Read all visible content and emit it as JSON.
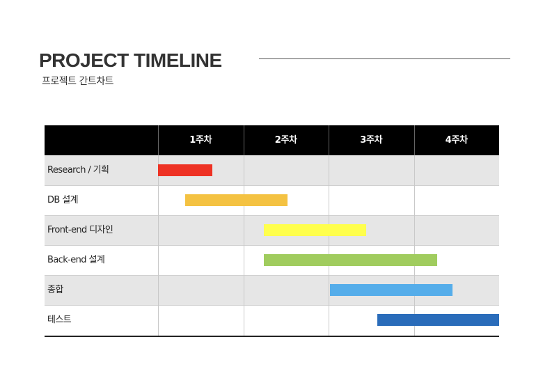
{
  "title": "PROJECT TIMELINE",
  "subtitle": "프로젝트 간트차트",
  "chart_data": {
    "type": "gantt",
    "x_unit": "week",
    "xlim": [
      0,
      4
    ],
    "columns": [
      "1주차",
      "2주차",
      "3주차",
      "4주차"
    ],
    "tasks": [
      {
        "name": "Research / 기획",
        "start": 0.0,
        "end": 0.64,
        "color": "#EE3224"
      },
      {
        "name": "DB 설계",
        "start": 0.32,
        "end": 1.52,
        "color": "#F4C242"
      },
      {
        "name": "Front-end 디자인",
        "start": 1.24,
        "end": 2.44,
        "color": "#FFFF4D"
      },
      {
        "name": "Back-end 설계",
        "start": 1.24,
        "end": 3.27,
        "color": "#A0CC5E"
      },
      {
        "name": "종합",
        "start": 2.02,
        "end": 3.45,
        "color": "#55ADEA"
      },
      {
        "name": "테스트",
        "start": 2.57,
        "end": 4.0,
        "color": "#2A6CBA"
      }
    ]
  }
}
